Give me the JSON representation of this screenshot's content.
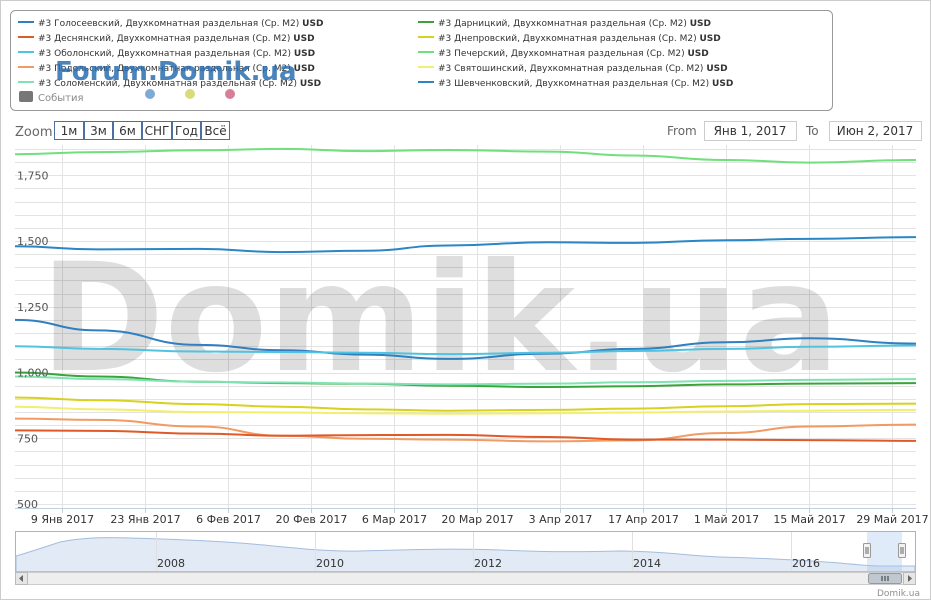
{
  "watermark": "Domik.ua",
  "forum_watermark": "Forum.Domik.ua",
  "footer_credit": "Domik.ua",
  "legend": {
    "events_label": "События",
    "event_dot_colors": [
      "#7eaad8",
      "#d8dc7c",
      "#d87e99"
    ],
    "items": [
      {
        "prefix": "#3",
        "label": "Голосеевский, Двухкомнатная раздельная (Ср. М2)",
        "currency": "USD",
        "color": "#2f7fc1"
      },
      {
        "prefix": "#3",
        "label": "Дарницкий, Двухкомнатная раздельная (Ср. М2)",
        "currency": "USD",
        "color": "#3aa33a"
      },
      {
        "prefix": "#3",
        "label": "Деснянский, Двухкомнатная раздельная (Ср. М2)",
        "currency": "USD",
        "color": "#e05a28"
      },
      {
        "prefix": "#3",
        "label": "Днепровский, Двухкомнатная раздельная (Ср. М2)",
        "currency": "USD",
        "color": "#d6d21e"
      },
      {
        "prefix": "#3",
        "label": "Оболонский, Двухкомнатная раздельная (Ср. М2)",
        "currency": "USD",
        "color": "#4fc3df"
      },
      {
        "prefix": "#3",
        "label": "Печерский, Двухкомнатная раздельная (Ср. М2)",
        "currency": "USD",
        "color": "#6fe07a"
      },
      {
        "prefix": "#3",
        "label": "Подольский, Двухкомнатная раздельная (Ср. М2)",
        "currency": "USD",
        "color": "#f29a62"
      },
      {
        "prefix": "#3",
        "label": "Святошинский, Двухкомнатная раздельная (Ср. М2)",
        "currency": "USD",
        "color": "#f0ef6e"
      },
      {
        "prefix": "#3",
        "label": "Соломенский, Двухкомнатная раздельная (Ср. М2)",
        "currency": "USD",
        "color": "#7fe3b2"
      },
      {
        "prefix": "#3",
        "label": "Шевченковский, Двухкомнатная раздельная (Ср. М2)",
        "currency": "USD",
        "color": "#2a86c4"
      }
    ]
  },
  "controls": {
    "zoom_label": "Zoom",
    "zoom_buttons": [
      "1м",
      "3м",
      "6м",
      "СНГ",
      "Год",
      "Всё"
    ],
    "from_label": "From",
    "from_value": "Янв 1, 2017",
    "to_label": "To",
    "to_value": "Июн 2, 2017"
  },
  "navigator": {
    "year_labels": [
      "2008",
      "2010",
      "2012",
      "2014",
      "2016"
    ]
  },
  "chart_data": {
    "type": "line",
    "x": [
      "2017-01-01",
      "2017-01-15",
      "2017-02-01",
      "2017-02-15",
      "2017-03-01",
      "2017-03-15",
      "2017-04-01",
      "2017-04-15",
      "2017-05-01",
      "2017-05-15",
      "2017-06-02"
    ],
    "x_tick_labels": [
      "9 Янв 2017",
      "23 Янв 2017",
      "6 Фев 2017",
      "20 Фев 2017",
      "6 Мар 2017",
      "20 Мар 2017",
      "3 Апр 2017",
      "17 Апр 2017",
      "1 Май 2017",
      "15 Май 2017",
      "29 Май 2017"
    ],
    "y_tick_labels": [
      "500",
      "750",
      "1,000",
      "1,250",
      "1,500",
      "1,750"
    ],
    "ylim": [
      485,
      1865
    ],
    "grid": true,
    "legend_position": "top",
    "series": [
      {
        "name": "#3 Печерский, Двухкомнатная раздельная (Ср. М2) USD",
        "color": "#6fe07a",
        "values": [
          1830,
          1838,
          1845,
          1850,
          1842,
          1846,
          1840,
          1825,
          1808,
          1798,
          1808
        ]
      },
      {
        "name": "#3 Шевченковский, Двухкомнатная раздельная (Ср. М2) USD",
        "color": "#2a86c4",
        "values": [
          1480,
          1468,
          1470,
          1458,
          1463,
          1483,
          1495,
          1493,
          1503,
          1508,
          1515
        ]
      },
      {
        "name": "#3 Голосеевский, Двухкомнатная раздельная (Ср. М2) USD",
        "color": "#2f7fc1",
        "values": [
          1200,
          1160,
          1105,
          1085,
          1068,
          1052,
          1072,
          1090,
          1115,
          1130,
          1110
        ]
      },
      {
        "name": "#3 Оболонский, Двухкомнатная раздельная (Ср. М2) USD",
        "color": "#4fc3df",
        "values": [
          1100,
          1090,
          1080,
          1078,
          1075,
          1070,
          1075,
          1082,
          1090,
          1098,
          1103
        ]
      },
      {
        "name": "#3 Дарницкий, Двухкомнатная раздельная (Ср. М2) USD",
        "color": "#3aa33a",
        "values": [
          1000,
          985,
          965,
          960,
          957,
          950,
          945,
          948,
          955,
          958,
          960
        ]
      },
      {
        "name": "#3 Соломенский, Двухкомнатная раздельная (Ср. М2) USD",
        "color": "#7fe3b2",
        "values": [
          985,
          975,
          965,
          962,
          958,
          955,
          958,
          963,
          968,
          972,
          975
        ]
      },
      {
        "name": "#3 Днепровский, Двухкомнатная раздельная (Ср. М2) USD",
        "color": "#d6d21e",
        "values": [
          905,
          895,
          880,
          870,
          860,
          855,
          858,
          863,
          872,
          880,
          882
        ]
      },
      {
        "name": "#3 Святошинский, Двухкомнатная раздельная (Ср. М2) USD",
        "color": "#f0ef6e",
        "values": [
          870,
          860,
          850,
          848,
          845,
          843,
          845,
          848,
          852,
          855,
          858
        ]
      },
      {
        "name": "#3 Подольский, Двухкомнатная раздельная (Ср. М2) USD",
        "color": "#f29a62",
        "values": [
          825,
          820,
          795,
          760,
          748,
          745,
          738,
          742,
          770,
          795,
          802
        ]
      },
      {
        "name": "#3 Деснянский, Двухкомнатная раздельная (Ср. М2) USD",
        "color": "#e05a28",
        "values": [
          780,
          778,
          768,
          760,
          762,
          763,
          755,
          745,
          745,
          743,
          740
        ]
      }
    ]
  }
}
